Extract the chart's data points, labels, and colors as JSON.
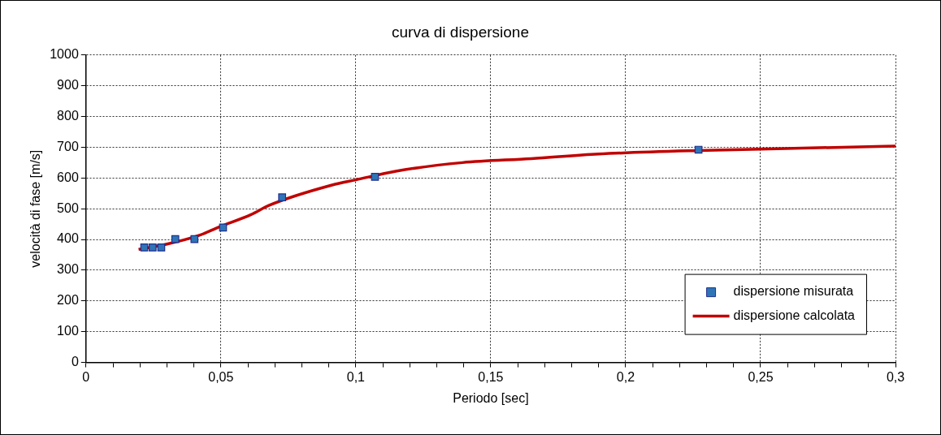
{
  "chart_data": {
    "type": "scatter",
    "title": "curva di dispersione",
    "xlabel": "Periodo [sec]",
    "ylabel": "velocità di fase [m/s]",
    "series": [
      {
        "name": "dispersione misurata",
        "type": "scatter",
        "color": "#2e75b6",
        "marker": "square",
        "x": [
          0.0216,
          0.0247,
          0.0279,
          0.0331,
          0.0402,
          0.0508,
          0.0727,
          0.1071,
          0.227
        ],
        "values": [
          374,
          374,
          374,
          401,
          401,
          439,
          537,
          604,
          692
        ]
      },
      {
        "name": "dispersione calcolata",
        "type": "line",
        "color": "#c00000",
        "marker": "none",
        "line_style": "solid",
        "x": [
          0.0195,
          0.03,
          0.0418,
          0.0494,
          0.0612,
          0.0676,
          0.0912,
          0.1,
          0.1148,
          0.1395,
          0.165,
          0.19,
          0.23,
          0.25,
          0.3
        ],
        "values": [
          368,
          385,
          413,
          441,
          481,
          510,
          577,
          594,
          622,
          650,
          663,
          678,
          690,
          694,
          704
        ]
      }
    ],
    "xlim": [
      0,
      0.3
    ],
    "ylim": [
      0,
      1000
    ],
    "xticks": [
      0,
      {
        "value": 0.01,
        "label": null
      },
      {
        "value": 0.02,
        "label": null
      },
      {
        "value": 0.03,
        "label": null
      },
      {
        "value": 0.04,
        "label": null
      },
      {
        "value": 0.05,
        "label": "0,05"
      },
      {
        "value": 0.06,
        "label": null
      },
      {
        "value": 0.07,
        "label": null
      },
      {
        "value": 0.08,
        "label": null
      },
      {
        "value": 0.09,
        "label": null
      },
      {
        "value": 0.1,
        "label": "0,1"
      },
      {
        "value": 0.11,
        "label": null
      },
      {
        "value": 0.12,
        "label": null
      },
      {
        "value": 0.13,
        "label": null
      },
      {
        "value": 0.14,
        "label": null
      },
      {
        "value": 0.15,
        "label": "0,15"
      },
      {
        "value": 0.16,
        "label": null
      },
      {
        "value": 0.17,
        "label": null
      },
      {
        "value": 0.18,
        "label": null
      },
      {
        "value": 0.19,
        "label": null
      },
      {
        "value": 0.2,
        "label": "0,2"
      },
      {
        "value": 0.21,
        "label": null
      },
      {
        "value": 0.22,
        "label": null
      },
      {
        "value": 0.23,
        "label": null
      },
      {
        "value": 0.24,
        "label": null
      },
      {
        "value": 0.25,
        "label": "0,25"
      },
      {
        "value": 0.26,
        "label": null
      },
      {
        "value": 0.27,
        "label": null
      },
      {
        "value": 0.28,
        "label": null
      },
      {
        "value": 0.29,
        "label": null
      },
      {
        "value": 0.3,
        "label": "0,3"
      }
    ],
    "yticks": [
      0,
      100,
      200,
      300,
      400,
      500,
      600,
      700,
      800,
      900,
      1000
    ],
    "grid": true,
    "legend": "bottom right"
  }
}
